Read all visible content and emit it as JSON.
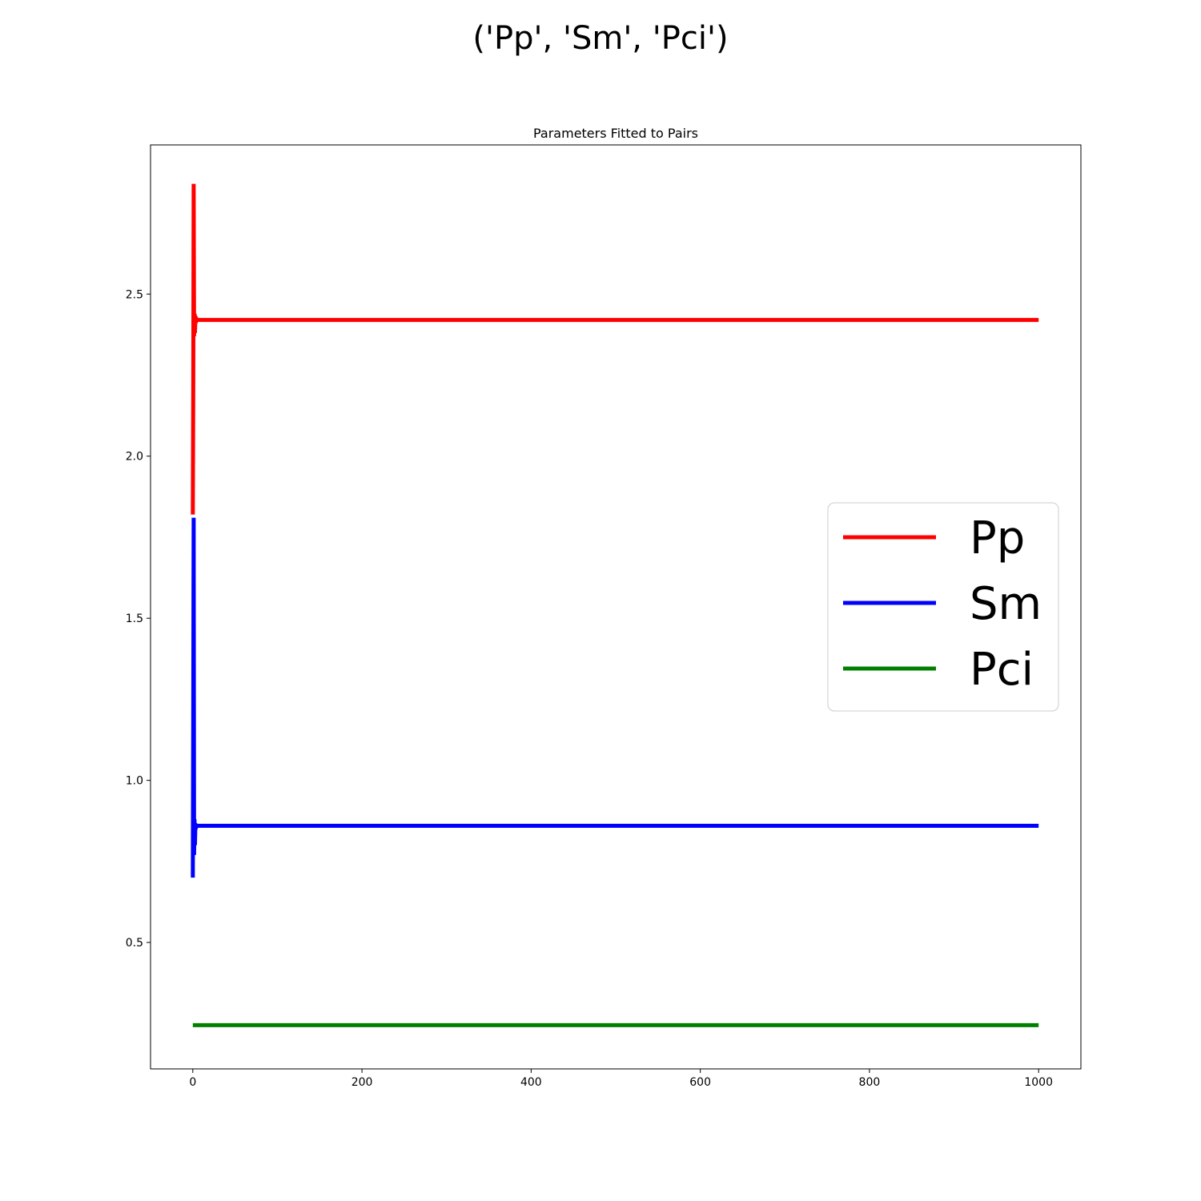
{
  "figure": {
    "suptitle": "('Pp', 'Sm', 'Pci')"
  },
  "chart_data": {
    "type": "line",
    "title": "Parameters Fitted to Pairs",
    "xlabel": "",
    "ylabel": "",
    "xlim": [
      -50,
      1050
    ],
    "ylim": [
      0.11,
      2.96
    ],
    "xticks": [
      0,
      200,
      400,
      600,
      800,
      1000
    ],
    "yticks": [
      0.5,
      1.0,
      1.5,
      2.0,
      2.5
    ],
    "xtick_labels": [
      "0",
      "200",
      "400",
      "600",
      "800",
      "1000"
    ],
    "ytick_labels": [
      "0.5",
      "1.0",
      "1.5",
      "2.0",
      "2.5"
    ],
    "grid": false,
    "legend_position": "center-right",
    "series": [
      {
        "name": "Pp",
        "color": "#ff0000",
        "x": [
          0,
          0.5,
          1,
          1.5,
          2,
          2.5,
          3,
          3.5,
          4,
          5,
          6,
          1000
        ],
        "y": [
          1.82,
          2.2,
          2.84,
          2.37,
          2.44,
          2.38,
          2.42,
          2.41,
          2.425,
          2.42,
          2.42,
          2.42
        ]
      },
      {
        "name": "Sm",
        "color": "#0000ff",
        "x": [
          0,
          0.5,
          1,
          1.5,
          2,
          2.5,
          3,
          3.5,
          4,
          5,
          6,
          1000
        ],
        "y": [
          0.7,
          1.2,
          1.81,
          0.77,
          0.88,
          0.8,
          0.86,
          0.85,
          0.862,
          0.86,
          0.86,
          0.86
        ]
      },
      {
        "name": "Pci",
        "color": "#008000",
        "x": [
          0,
          1000
        ],
        "y": [
          0.245,
          0.245
        ]
      }
    ]
  }
}
